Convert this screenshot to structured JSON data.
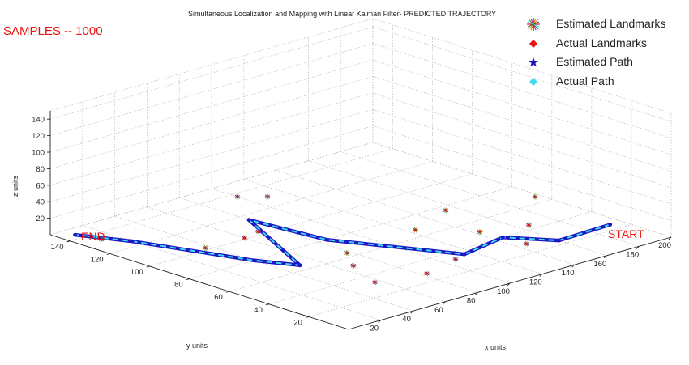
{
  "chart_data": {
    "type": "line",
    "title": "Simultaneous Localization and Mapping with Linear Kalman Filter- PREDICTED TRAJECTORY",
    "annotation_samples": "SAMPLES -- 1000",
    "xlabel": "x units",
    "ylabel": "y units",
    "zlabel": "z units",
    "xlim": [
      0,
      200
    ],
    "ylim": [
      0,
      150
    ],
    "zlim": [
      0,
      150
    ],
    "x_ticks": [
      "20",
      "40",
      "60",
      "80",
      "100",
      "120",
      "140",
      "160",
      "180",
      "200"
    ],
    "y_ticks": [
      "20",
      "40",
      "60",
      "80",
      "100",
      "120",
      "140"
    ],
    "z_ticks": [
      "20",
      "40",
      "60",
      "80",
      "100",
      "120",
      "140"
    ],
    "grid": true,
    "legend_position": "top-right",
    "start_label": "START",
    "end_label": "END",
    "colors": {
      "estimated_path": "#1d17c2",
      "actual_path": "#3fd9f2",
      "actual_landmarks": "#e8130f",
      "estimated_landmarks": "#6a5aa0",
      "annotation": "#e8130f"
    },
    "series": [
      {
        "name": "Estimated Landmarks",
        "marker": "starburst"
      },
      {
        "name": "Actual Landmarks",
        "marker": "diamond"
      },
      {
        "name": "Estimated Path",
        "marker": "star"
      },
      {
        "name": "Actual Path",
        "marker": "diamond"
      }
    ],
    "path_points": [
      {
        "x": 193,
        "y": 25,
        "z": 0
      },
      {
        "x": 160,
        "y": 24,
        "z": 0
      },
      {
        "x": 145,
        "y": 40,
        "z": 0
      },
      {
        "x": 115,
        "y": 35,
        "z": 0
      },
      {
        "x": 85,
        "y": 80,
        "z": 0
      },
      {
        "x": 80,
        "y": 115,
        "z": 0
      },
      {
        "x": 50,
        "y": 65,
        "z": 0
      },
      {
        "x": 40,
        "y": 80,
        "z": 0
      },
      {
        "x": 20,
        "y": 125,
        "z": 0
      },
      {
        "x": 8,
        "y": 144,
        "z": 0
      }
    ],
    "landmarks": [
      {
        "x": 100,
        "y": 137,
        "z": 0
      },
      {
        "x": 110,
        "y": 130,
        "z": 0
      },
      {
        "x": 154,
        "y": 76,
        "z": 0
      },
      {
        "x": 60,
        "y": 101,
        "z": 0
      },
      {
        "x": 78,
        "y": 64,
        "z": 0
      },
      {
        "x": 124,
        "y": 67,
        "z": 0
      },
      {
        "x": 166,
        "y": 44,
        "z": 0
      },
      {
        "x": 143,
        "y": 50,
        "z": 0
      },
      {
        "x": 146,
        "y": 29,
        "z": 0
      },
      {
        "x": 67,
        "y": 52,
        "z": 0
      },
      {
        "x": 107,
        "y": 33,
        "z": 0
      },
      {
        "x": 83,
        "y": 28,
        "z": 0
      },
      {
        "x": 37,
        "y": 102,
        "z": 0
      },
      {
        "x": 12,
        "y": 134,
        "z": 0
      },
      {
        "x": 197,
        "y": 66,
        "z": 0
      },
      {
        "x": 57,
        "y": 33,
        "z": 0
      },
      {
        "x": 71,
        "y": 103,
        "z": 0
      }
    ]
  }
}
